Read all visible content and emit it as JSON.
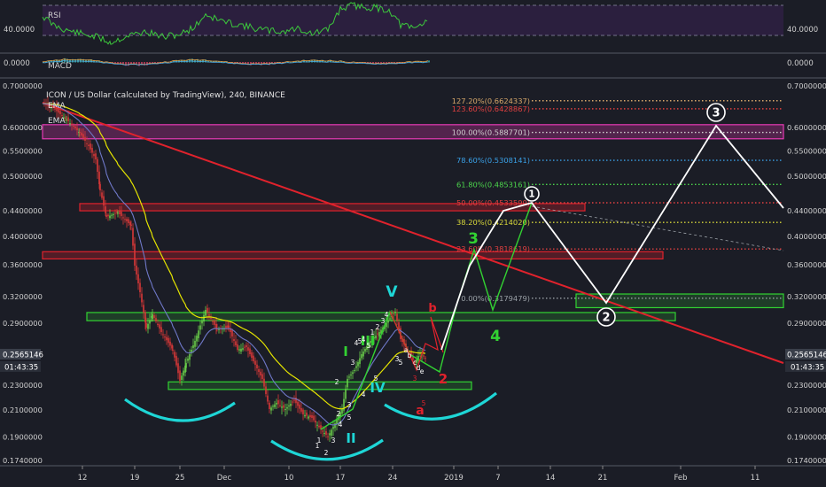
{
  "chart_title": "ICON / US Dollar (calculated by TradingView), 240, BINANCE",
  "panes": {
    "rsi": {
      "label": "RSI",
      "level_labels": [
        "40.0000",
        "40.0000"
      ]
    },
    "macd": {
      "label": "MACD",
      "level_labels": [
        "0.0000",
        "0.0000"
      ]
    }
  },
  "indicators": {
    "ema_label_1": "EMA",
    "ema_label_2": "EMA"
  },
  "timer": "01:43:35",
  "price_badge": "0.2565146",
  "colors": {
    "background": "#1b1d26",
    "trendline": "#e0222c",
    "zone_magenta": "#e63ab4",
    "zone_red": "#e0222c",
    "zone_green": "#32d232",
    "ema_yellow": "#e4e400",
    "ema_blue": "#6f78c8",
    "wave_white": "#ffffff",
    "wave_green": "#32d232",
    "arc_cyan": "#1ed6d6",
    "candle_up": "#6ad04a",
    "candle_down": "#d93838"
  },
  "chart_data": {
    "type": "candlestick",
    "x_tick_labels": [
      "12",
      "19",
      "25",
      "Dec",
      "10",
      "17",
      "24",
      "2019",
      "7",
      "14",
      "21",
      "Feb",
      "11"
    ],
    "y_tick_labels": [
      "0.7000000",
      "0.6000000",
      "0.5500000",
      "0.5000000",
      "0.4400000",
      "0.4000000",
      "0.3600000",
      "0.3200000",
      "0.2900000",
      "0.2300000",
      "0.2100000",
      "0.1900000",
      "0.1740000"
    ],
    "y_tick_values": [
      0.7,
      0.6,
      0.55,
      0.5,
      0.44,
      0.4,
      0.36,
      0.32,
      0.29,
      0.23,
      0.21,
      0.19,
      0.174
    ],
    "y_scale": "log",
    "ylim": [
      0.17,
      0.72
    ],
    "current_price": 0.2565146,
    "fibonacci_levels": [
      {
        "label": "127.20%(0.6624337)",
        "value": 0.6624337,
        "color": "#d8a86a"
      },
      {
        "label": "123.60%(0.6428867)",
        "value": 0.6428867,
        "color": "#e04040"
      },
      {
        "label": "100.00%(0.5887701)",
        "value": 0.5887701,
        "color": "#d0d0d0"
      },
      {
        "label": "78.60%(0.5308141)",
        "value": 0.5308141,
        "color": "#3aa0e6"
      },
      {
        "label": "61.80%(0.4853161)",
        "value": 0.4853161,
        "color": "#4cd64c"
      },
      {
        "label": "50.00%(0.4533590)",
        "value": 0.453359,
        "color": "#e04040"
      },
      {
        "label": "38.20%(0.4214020)",
        "value": 0.421402,
        "color": "#d8d83a"
      },
      {
        "label": "23.60%(0.3818619)",
        "value": 0.3818619,
        "color": "#e04040"
      },
      {
        "label": "0.00%(0.3179479)",
        "value": 0.3179479,
        "color": "#9aa0a6"
      }
    ],
    "zones": [
      {
        "type": "magenta",
        "low": 0.575,
        "high": 0.606
      },
      {
        "type": "red",
        "low": 0.44,
        "high": 0.452
      },
      {
        "type": "red",
        "low": 0.368,
        "high": 0.378
      },
      {
        "type": "green",
        "low": 0.307,
        "high": 0.323
      },
      {
        "type": "green",
        "low": 0.2925,
        "high": 0.3015
      },
      {
        "type": "green",
        "low": 0.2265,
        "high": 0.233
      }
    ],
    "wave_labels": {
      "white_large": [
        "1",
        "2",
        "3"
      ],
      "green_large": [
        "3",
        "4"
      ],
      "impulse_green": [
        "I",
        "III",
        "V"
      ],
      "impulse_cyan": [
        "II",
        "IV"
      ],
      "correction_red": [
        "b",
        "2",
        "a"
      ],
      "small_white": [
        "1",
        "2",
        "3",
        "4",
        "5",
        "4",
        "5",
        "2",
        "3",
        "4",
        "5",
        "1",
        "2",
        "3",
        "4",
        "3",
        "5",
        "a",
        "b",
        "c",
        "d",
        "e",
        "1",
        "2",
        "3",
        "4",
        "5"
      ],
      "small_red": [
        "3",
        "5"
      ]
    }
  }
}
